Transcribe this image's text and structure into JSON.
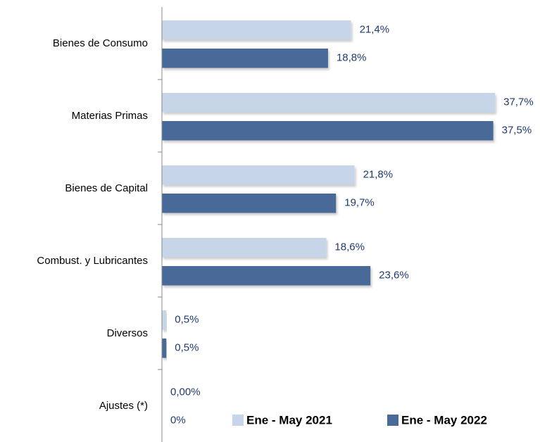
{
  "chart_data": {
    "type": "bar",
    "orientation": "horizontal",
    "categories": [
      "Bienes de Consumo",
      "Materias Primas",
      "Bienes de Capital",
      "Combust. y Lubricantes",
      "Diversos",
      "Ajustes (*)"
    ],
    "series": [
      {
        "name": "Ene - May 2021",
        "color": "#c6d5e8",
        "values": [
          21.4,
          37.7,
          21.8,
          18.6,
          0.5,
          0
        ],
        "value_labels": [
          "21,4%",
          "37,7%",
          "21,8%",
          "18,6%",
          "0,5%",
          "0,00%"
        ]
      },
      {
        "name": "Ene - May 2022",
        "color": "#4a6a99",
        "values": [
          18.8,
          37.5,
          19.7,
          23.6,
          0.5,
          0
        ],
        "value_labels": [
          "18,8%",
          "37,5%",
          "19,7%",
          "23,6%",
          "0,5%",
          "0%"
        ]
      }
    ],
    "xlim": [
      0,
      40
    ],
    "legend": "bottom-right"
  }
}
